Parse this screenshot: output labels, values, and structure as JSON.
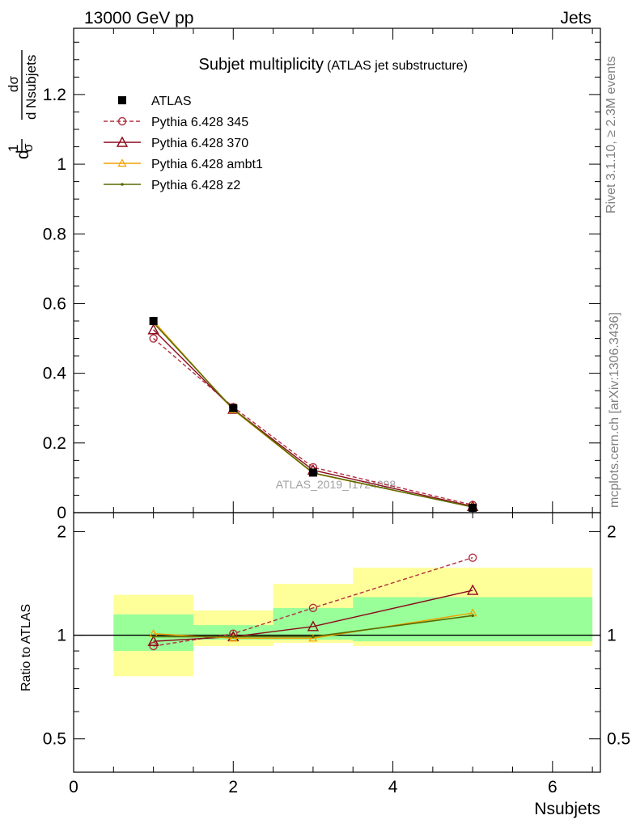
{
  "header": {
    "left": "13000 GeV pp",
    "right": "Jets"
  },
  "side_labels": {
    "rivet": "Rivet 3.1.10, ≥ 2.3M events",
    "mcplots": "mcplots.cern.ch [arXiv:1306.3436]"
  },
  "chart_data": [
    {
      "type": "line",
      "title": "Subjet multiplicity",
      "subtitle": "(ATLAS jet substructure)",
      "xlabel": "Nsubjets",
      "ylabel_parts": {
        "num_top": "d",
        "frac1": "1",
        "frac_den": "σ",
        "dsigma": "dσ",
        "dn": "d Nsubjets"
      },
      "xlim": [
        0,
        6.6
      ],
      "ylim": [
        0,
        1.39
      ],
      "yticks": [
        0,
        0.2,
        0.4,
        0.6,
        0.8,
        1,
        1.2
      ],
      "ytick_labels": [
        "0",
        "0.2",
        "0.4",
        "0.6",
        "0.8",
        "1",
        "1.2"
      ],
      "watermark": "ATLAS_2019_I1724098",
      "legend_position": "top-left",
      "series": [
        {
          "name": "ATLAS",
          "style": "data",
          "color": "#000000",
          "x": [
            1,
            2,
            3,
            5
          ],
          "values": [
            0.55,
            0.3,
            0.115,
            0.014
          ]
        },
        {
          "name": "Pythia 6.428 345",
          "style": "dashed-circle",
          "color": "#b03040",
          "x": [
            1,
            2,
            3,
            5
          ],
          "values": [
            0.5,
            0.303,
            0.13,
            0.022
          ]
        },
        {
          "name": "Pythia 6.428 370",
          "style": "solid-triangle",
          "color": "#8b0a1a",
          "x": [
            1,
            2,
            3,
            5
          ],
          "values": [
            0.525,
            0.297,
            0.122,
            0.018
          ]
        },
        {
          "name": "Pythia 6.428 ambt1",
          "style": "solid-triangle-small",
          "color": "#f0a000",
          "x": [
            1,
            2,
            3,
            5
          ],
          "values": [
            0.55,
            0.295,
            0.113,
            0.016
          ]
        },
        {
          "name": "Pythia 6.428 z2",
          "style": "solid-dot",
          "color": "#5a6a00",
          "x": [
            1,
            2,
            3,
            5
          ],
          "values": [
            0.545,
            0.297,
            0.114,
            0.016
          ]
        }
      ]
    },
    {
      "type": "line",
      "ylabel": "Ratio to ATLAS",
      "xlabel": "Nsubjets",
      "xlim": [
        0,
        6.6
      ],
      "ylim": [
        0.4,
        2.27
      ],
      "log_scale_y": true,
      "xticks": [
        0,
        2,
        4,
        6
      ],
      "xtick_labels": [
        "0",
        "2",
        "4",
        "6"
      ],
      "yticks": [
        0.5,
        1,
        2
      ],
      "ytick_labels": [
        "0.5",
        "1",
        "2"
      ],
      "bands": [
        {
          "x0": 0.5,
          "x1": 1.5,
          "green": [
            0.9,
            1.15
          ],
          "yellow": [
            0.76,
            1.31
          ]
        },
        {
          "x0": 1.5,
          "x1": 2.5,
          "green": [
            0.97,
            1.07
          ],
          "yellow": [
            0.93,
            1.18
          ]
        },
        {
          "x0": 2.5,
          "x1": 3.5,
          "green": [
            0.97,
            1.2
          ],
          "yellow": [
            0.95,
            1.41
          ]
        },
        {
          "x0": 3.5,
          "x1": 6.5,
          "green": [
            0.96,
            1.29
          ],
          "yellow": [
            0.93,
            1.57
          ]
        }
      ],
      "series": [
        {
          "name": "Pythia 6.428 345",
          "style": "dashed-circle",
          "color": "#b03040",
          "x": [
            1,
            2,
            3,
            5
          ],
          "values": [
            0.93,
            1.01,
            1.2,
            1.68
          ]
        },
        {
          "name": "Pythia 6.428 370",
          "style": "solid-triangle",
          "color": "#8b0a1a",
          "x": [
            1,
            2,
            3,
            5
          ],
          "values": [
            0.96,
            0.99,
            1.06,
            1.35
          ]
        },
        {
          "name": "Pythia 6.428 ambt1",
          "style": "solid-triangle-small",
          "color": "#f0a000",
          "x": [
            1,
            2,
            3,
            5
          ],
          "values": [
            1.01,
            0.98,
            0.98,
            1.16
          ]
        },
        {
          "name": "Pythia 6.428 z2",
          "style": "solid-dot",
          "color": "#5a6a00",
          "x": [
            1,
            2,
            3,
            5
          ],
          "values": [
            0.99,
            0.99,
            0.99,
            1.14
          ]
        }
      ]
    }
  ]
}
